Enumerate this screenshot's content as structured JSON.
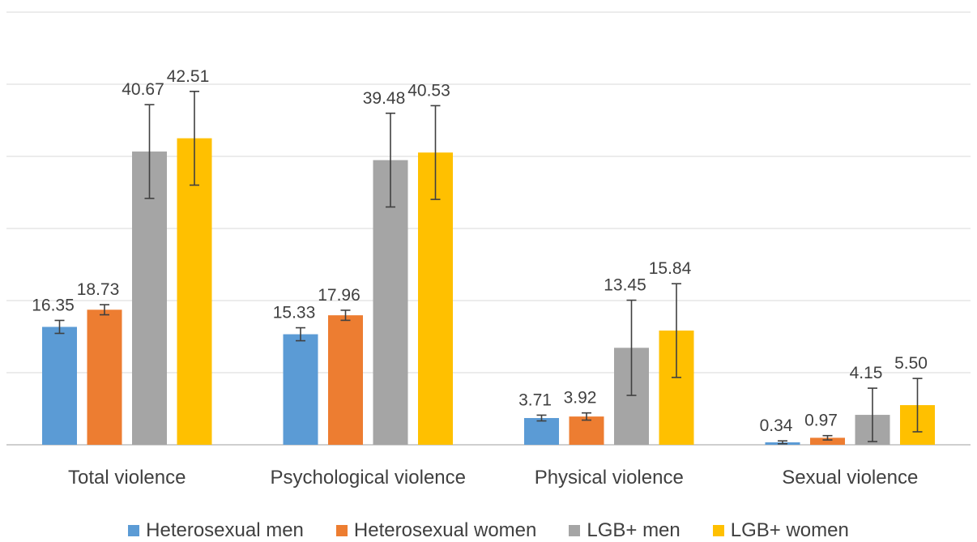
{
  "chart_data": {
    "type": "bar",
    "categories": [
      "Total violence",
      "Psychological violence",
      "Physical violence",
      "Sexual violence"
    ],
    "series": [
      {
        "name": "Heterosexual men",
        "color": "#5b9bd5",
        "values": [
          16.35,
          15.33,
          3.71,
          0.34
        ],
        "error": [
          0.9,
          0.9,
          0.4,
          0.2
        ]
      },
      {
        "name": "Heterosexual women",
        "color": "#ed7d31",
        "values": [
          18.73,
          17.96,
          3.92,
          0.97
        ],
        "error": [
          0.7,
          0.7,
          0.5,
          0.3
        ]
      },
      {
        "name": "LGB+ men",
        "color": "#a5a5a5",
        "values": [
          40.67,
          39.48,
          13.45,
          4.15
        ],
        "error": [
          6.5,
          6.5,
          6.6,
          3.7
        ]
      },
      {
        "name": "LGB+ women",
        "color": "#ffc000",
        "values": [
          42.51,
          40.53,
          15.84,
          5.5
        ],
        "error": [
          6.5,
          6.5,
          6.5,
          3.7
        ]
      }
    ],
    "ylim": [
      0,
      60
    ],
    "grid": true,
    "legend": "bottom",
    "value_labels": [
      [
        "16.35",
        "15.33",
        "3.71",
        "0.34"
      ],
      [
        "18.73",
        "17.96",
        "3.92",
        "0.97"
      ],
      [
        "40.67",
        "39.48",
        "13.45",
        "4.15"
      ],
      [
        "42.51",
        "40.53",
        "15.84",
        "5.50"
      ]
    ]
  }
}
